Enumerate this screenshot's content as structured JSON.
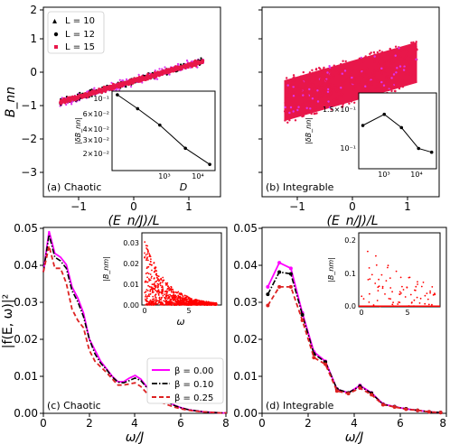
{
  "colors": {
    "L10": "#dd33ee",
    "L12": "#000000",
    "L15": "#e8174a",
    "beta000": "#ff00ff",
    "beta010": "#000000",
    "beta025": "#dd2222",
    "inset_scatter": "#ff0000"
  },
  "chart_data": [
    {
      "type": "scatter",
      "panel": "(a) Chaotic",
      "xlabel": "(E_n/J)/L",
      "ylabel": "B_nn",
      "xlim": [
        -1.6,
        1.6
      ],
      "ylim": [
        -3.1,
        2.0
      ],
      "xticks": [
        "−1",
        "0",
        "1"
      ],
      "yticks": [
        "2",
        "1",
        "0",
        "−1",
        "−2",
        "−3"
      ],
      "legend": {
        "position": "top-left",
        "entries": [
          "L = 10",
          "L = 12",
          "L = 15"
        ]
      },
      "series": [
        {
          "name": "L = 10",
          "band": {
            "x": [
              -1.3,
              1.3
            ],
            "slope": 0.43,
            "halfwidth": 0.16
          }
        },
        {
          "name": "L = 12",
          "band": {
            "x": [
              -1.3,
              1.3
            ],
            "slope": 0.43,
            "halfwidth": 0.12
          }
        },
        {
          "name": "L = 15",
          "band": {
            "x": [
              -1.3,
              1.3
            ],
            "slope": 0.43,
            "halfwidth": 0.09
          }
        }
      ],
      "inset": {
        "type": "line",
        "xscale": "log",
        "yscale": "log",
        "xlabel": "D",
        "ylabel": "|δB_nn|",
        "x": [
          200,
          600,
          2000,
          8000,
          30000
        ],
        "y": [
          0.1,
          0.065,
          0.039,
          0.019,
          0.0115
        ],
        "xticks": [
          "10³",
          "10⁴"
        ],
        "yticks": [
          "10⁻¹",
          "6×10⁻²",
          "4×10⁻²",
          "3×10⁻²",
          "2×10⁻²"
        ]
      }
    },
    {
      "type": "scatter",
      "panel": "(b) Integrable",
      "xlabel": "(E_n/J)/L",
      "xlim": [
        -1.6,
        1.6
      ],
      "ylim": [
        -3.1,
        2.0
      ],
      "xticks": [
        "−1",
        "0",
        "1"
      ],
      "band": {
        "x": [
          -1.2,
          1.2
        ],
        "slope": 0.43,
        "halfwidth": 0.55
      },
      "inset": {
        "type": "line",
        "xscale": "log",
        "yscale": "log",
        "ylabel": "|δB_nn|",
        "x": [
          200,
          900,
          3000,
          10000,
          25000
        ],
        "y": [
          0.125,
          0.136,
          0.123,
          0.105,
          0.102
        ],
        "xticks": [
          "10³",
          "10⁴"
        ],
        "yticks": [
          "1.5×10⁻¹",
          "10⁻¹"
        ]
      }
    },
    {
      "type": "line",
      "panel": "(c) Chaotic",
      "xlabel": "ω/J",
      "ylabel": "|f(E, ω)|²",
      "xlim": [
        0,
        8
      ],
      "ylim": [
        0,
        0.05
      ],
      "xticks": [
        "0",
        "2",
        "4",
        "6",
        "8"
      ],
      "yticks": [
        "0.00",
        "0.01",
        "0.02",
        "0.03",
        "0.04",
        "0.05"
      ],
      "legend": {
        "position": "bottom-right",
        "entries": [
          "β = 0.00",
          "β = 0.10",
          "β = 0.25"
        ]
      },
      "x": [
        0,
        0.25,
        0.5,
        0.75,
        1.0,
        1.25,
        1.5,
        1.75,
        2.0,
        2.25,
        2.5,
        2.75,
        3.0,
        3.25,
        3.5,
        3.75,
        4.0,
        4.25,
        4.5,
        4.75,
        5.0,
        5.25,
        5.5,
        5.75,
        6.0,
        6.25,
        6.5,
        6.75,
        7.0,
        7.25,
        7.5,
        7.75,
        8.0
      ],
      "series": [
        {
          "name": "β = 0.00",
          "values": [
            0.038,
            0.049,
            0.043,
            0.042,
            0.04,
            0.034,
            0.031,
            0.027,
            0.02,
            0.017,
            0.014,
            0.012,
            0.01,
            0.0085,
            0.0085,
            0.0095,
            0.0102,
            0.0092,
            0.0072,
            0.0055,
            0.0042,
            0.0035,
            0.0028,
            0.0021,
            0.0015,
            0.0011,
            0.0008,
            0.0006,
            0.0004,
            0.0003,
            0.0002,
            0.0001,
            0.0001
          ]
        },
        {
          "name": "β = 0.10",
          "values": [
            0.038,
            0.048,
            0.042,
            0.041,
            0.039,
            0.033,
            0.03,
            0.026,
            0.02,
            0.016,
            0.0135,
            0.0118,
            0.0098,
            0.0084,
            0.0082,
            0.0088,
            0.0095,
            0.0088,
            0.007,
            0.0054,
            0.0041,
            0.0034,
            0.0027,
            0.002,
            0.0015,
            0.0011,
            0.0008,
            0.0006,
            0.0004,
            0.0003,
            0.0002,
            0.0001,
            0.0001
          ]
        },
        {
          "name": "β = 0.25",
          "values": [
            0.038,
            0.045,
            0.039,
            0.039,
            0.035,
            0.028,
            0.025,
            0.023,
            0.017,
            0.014,
            0.0125,
            0.011,
            0.0093,
            0.0076,
            0.0076,
            0.0079,
            0.0082,
            0.0072,
            0.0055,
            0.0044,
            0.0033,
            0.0027,
            0.0021,
            0.0016,
            0.0012,
            0.0009,
            0.0007,
            0.0005,
            0.0004,
            0.0003,
            0.0002,
            0.0001,
            0.0001
          ]
        }
      ],
      "inset": {
        "type": "scatter",
        "xlabel": "ω",
        "ylabel": "|B_nm|",
        "xlim": [
          -0.3,
          8.5
        ],
        "ylim": [
          0,
          0.035
        ],
        "xticks": [
          "0",
          "5"
        ],
        "yticks": [
          "0.00",
          "0.01",
          "0.02",
          "0.03"
        ]
      }
    },
    {
      "type": "line",
      "panel": "(d) Integrable",
      "xlabel": "ω/J",
      "xlim": [
        0,
        8
      ],
      "ylim": [
        0,
        0.05
      ],
      "xticks": [
        "0",
        "2",
        "4",
        "6",
        "8"
      ],
      "yticks": [
        "0.00",
        "0.01",
        "0.02",
        "0.03",
        "0.04",
        "0.05"
      ],
      "x": [
        0.25,
        0.75,
        1.25,
        1.75,
        2.25,
        2.75,
        3.25,
        3.75,
        4.25,
        4.75,
        5.25,
        5.75,
        6.25,
        6.75,
        7.25,
        7.75
      ],
      "series": [
        {
          "name": "β = 0.00",
          "values": [
            0.034,
            0.0405,
            0.039,
            0.027,
            0.0165,
            0.014,
            0.0065,
            0.0055,
            0.0075,
            0.0055,
            0.0025,
            0.0018,
            0.0012,
            0.0008,
            0.0004,
            0.0002
          ]
        },
        {
          "name": "β = 0.10",
          "values": [
            0.032,
            0.038,
            0.0375,
            0.0265,
            0.016,
            0.0138,
            0.0065,
            0.0055,
            0.0073,
            0.0054,
            0.0024,
            0.0018,
            0.0012,
            0.0008,
            0.0004,
            0.0002
          ]
        },
        {
          "name": "β = 0.25",
          "values": [
            0.029,
            0.034,
            0.034,
            0.025,
            0.015,
            0.0132,
            0.006,
            0.0053,
            0.0068,
            0.005,
            0.0023,
            0.0017,
            0.0011,
            0.0008,
            0.0004,
            0.0002
          ]
        }
      ],
      "inset": {
        "type": "scatter",
        "ylabel": "|B_nm|",
        "xlim": [
          -0.3,
          8.5
        ],
        "ylim": [
          0,
          0.22
        ],
        "xticks": [
          "0",
          "5"
        ],
        "yticks": [
          "0.0",
          "0.1",
          "0.2"
        ]
      }
    }
  ],
  "labels": {
    "a_panel": "(a) Chaotic",
    "b_panel": "(b) Integrable",
    "c_panel": "(c) Chaotic",
    "d_panel": "(d) Integrable",
    "top_xlabel": "(E_n/J)/L",
    "top_ylabel": "B_nn",
    "bottom_xlabel": "ω/J",
    "bottom_ylabel": "|f(E, ω)|²",
    "inset_D": "D",
    "inset_dB": "|δB_nn|",
    "inset_Bnm": "|B_nm|",
    "inset_omega": "ω"
  }
}
